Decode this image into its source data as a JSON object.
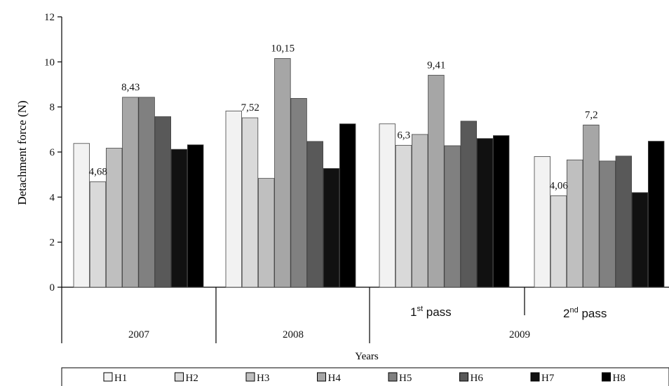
{
  "chart_data": {
    "type": "bar",
    "ylabel": "Detachment force (N)",
    "xlabel": "Years",
    "ylim": [
      0,
      12
    ],
    "yticks": [
      "0",
      "2",
      "4",
      "6",
      "8",
      "10",
      "12"
    ],
    "grid": false,
    "legend_position": "bottom",
    "colors": [
      "#f2f2f2",
      "#d9d9d9",
      "#bfbfbf",
      "#a6a6a6",
      "#808080",
      "#595959",
      "#111111",
      "#000000"
    ],
    "groups": [
      {
        "label": "2007",
        "values": [
          6.38,
          4.68,
          6.17,
          8.43,
          8.43,
          7.57,
          6.12,
          6.32
        ],
        "data_labels": [
          {
            "series": 1,
            "text": "4,68"
          },
          {
            "series": 3,
            "text": "8,43"
          }
        ]
      },
      {
        "label": "2008",
        "values": [
          7.82,
          7.52,
          4.83,
          10.15,
          8.38,
          6.47,
          5.27,
          7.25
        ],
        "data_labels": [
          {
            "series": 1,
            "text": "7,52"
          },
          {
            "series": 3,
            "text": "10,15"
          }
        ]
      },
      {
        "label": "1st pass",
        "values": [
          7.25,
          6.3,
          6.78,
          9.41,
          6.28,
          7.37,
          6.6,
          6.73
        ],
        "data_labels": [
          {
            "series": 1,
            "text": "6,3"
          },
          {
            "series": 3,
            "text": "9,41"
          }
        ]
      },
      {
        "label": "2nd pass",
        "values": [
          5.8,
          4.06,
          5.65,
          7.2,
          5.6,
          5.82,
          4.2,
          6.48
        ],
        "data_labels": [
          {
            "series": 1,
            "text": "4,06"
          },
          {
            "series": 3,
            "text": "7,2"
          }
        ]
      }
    ],
    "subgroups": [
      {
        "base": "1",
        "sup": "st",
        "rest": " pass"
      },
      {
        "base": "2",
        "sup": "nd",
        "rest": " pass"
      }
    ],
    "year_labels": [
      "2007",
      "2008",
      "2009"
    ],
    "series": [
      {
        "name": "H1"
      },
      {
        "name": "H2"
      },
      {
        "name": "H3"
      },
      {
        "name": "H4"
      },
      {
        "name": "H5"
      },
      {
        "name": "H6"
      },
      {
        "name": "H7"
      },
      {
        "name": "H8"
      }
    ]
  }
}
